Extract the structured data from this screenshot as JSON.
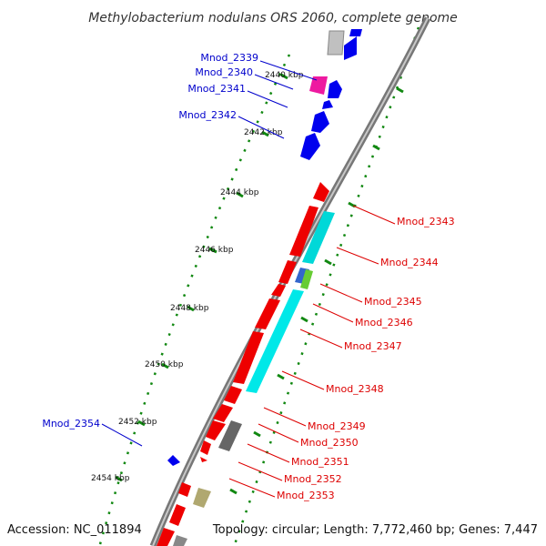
{
  "title": "Methylobacterium nodulans ORS 2060, complete genome",
  "footer": {
    "accession": "Accession: NC_011894",
    "summary": "Topology: circular; Length: 7,772,460 bp; Genes: 7,447"
  },
  "scale": {
    "ticks": [
      "2440 kbp",
      "2442 kbp",
      "2444 kbp",
      "2446 kbp",
      "2448 kbp",
      "2450 kbp",
      "2452 kbp",
      "2454 kbp"
    ]
  },
  "colors": {
    "forward_label": "#0000cc",
    "reverse_label": "#dd0000",
    "forward_gene": "#0000ee",
    "reverse_gene": "#ee0000",
    "feature_cyan": "#00e0e0",
    "feature_gray": "#777777",
    "tick_green": "#118811",
    "backbone": "#888888"
  },
  "genes_forward": [
    "Mnod_2339",
    "Mnod_2340",
    "Mnod_2341",
    "Mnod_2342",
    "Mnod_2354"
  ],
  "genes_reverse": [
    "Mnod_2343",
    "Mnod_2344",
    "Mnod_2345",
    "Mnod_2346",
    "Mnod_2347",
    "Mnod_2348",
    "Mnod_2349",
    "Mnod_2350",
    "Mnod_2351",
    "Mnod_2352",
    "Mnod_2353"
  ]
}
